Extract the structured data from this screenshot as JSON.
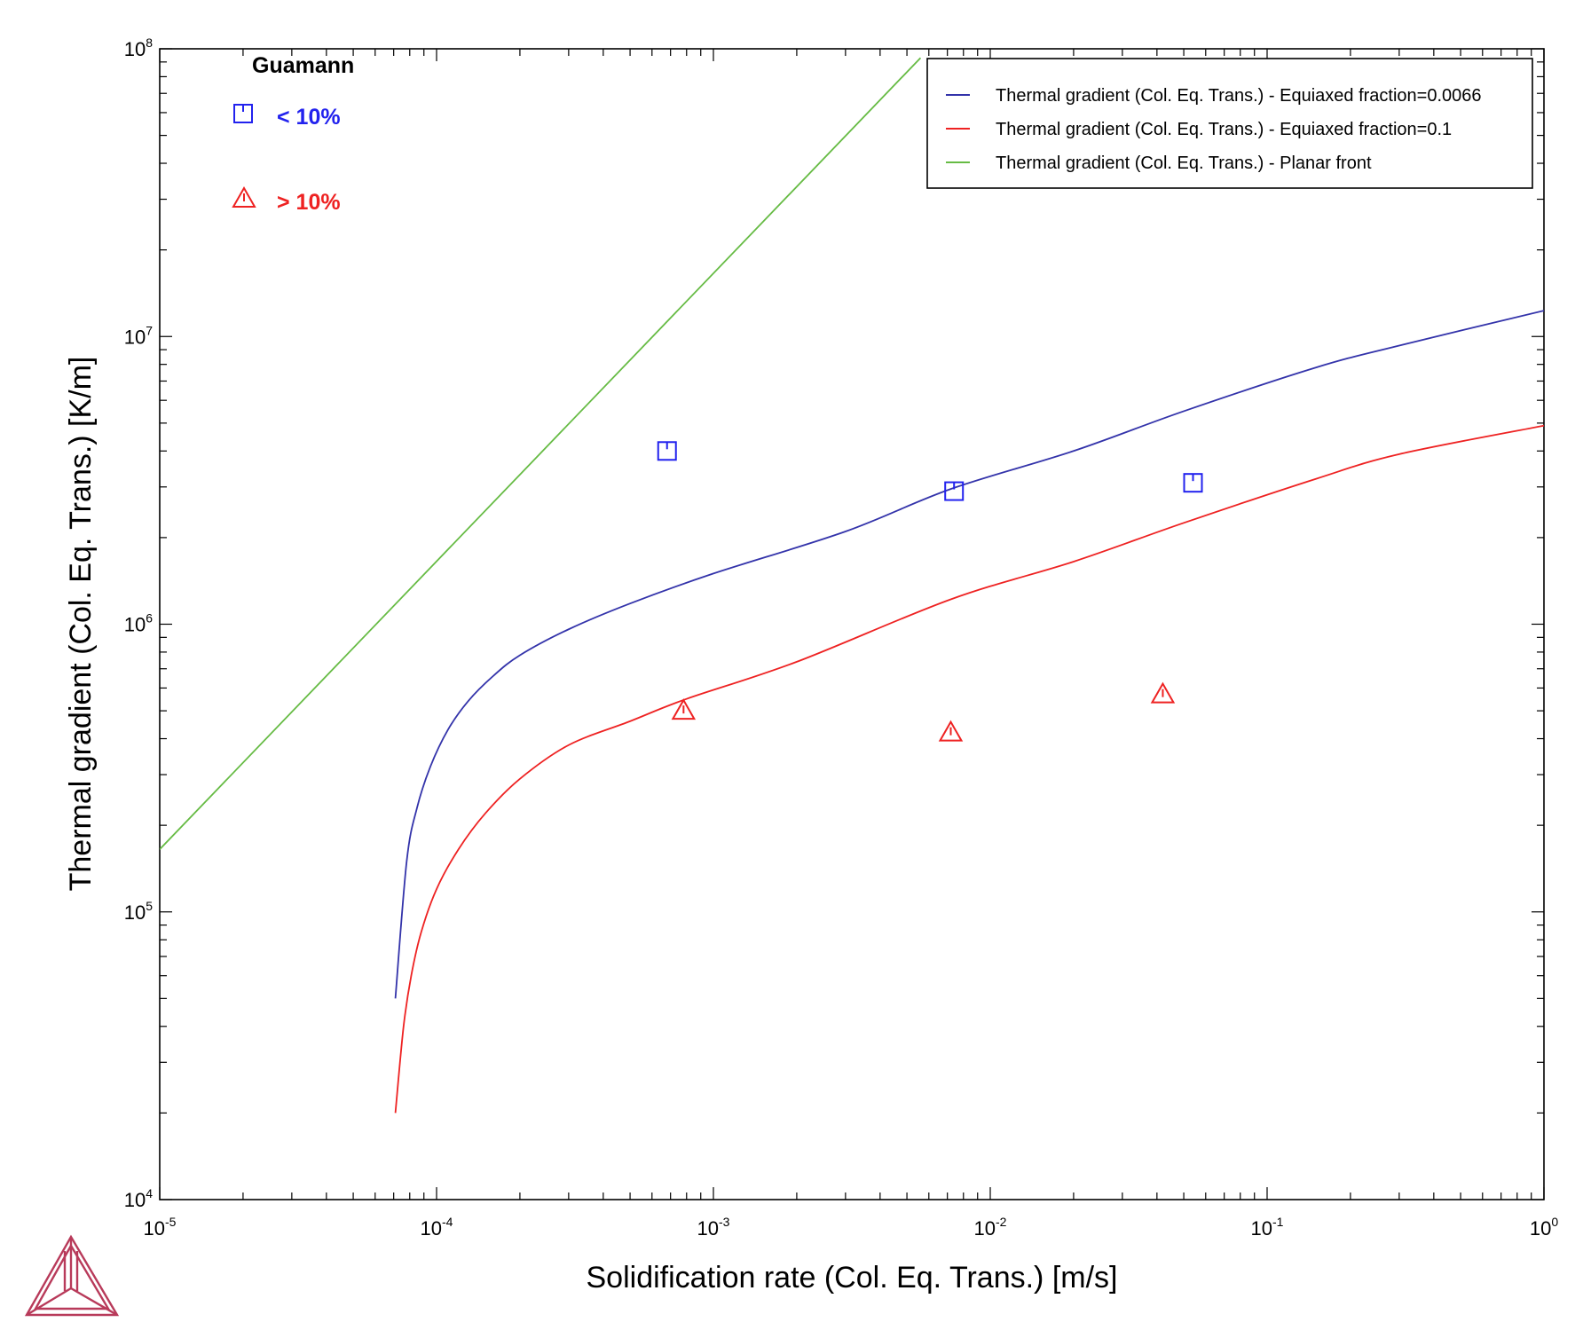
{
  "chart_data": {
    "type": "line",
    "xlabel": "Solidification rate (Col. Eq. Trans.) [m/s]",
    "ylabel": "Thermal gradient (Col. Eq. Trans.) [K/m]",
    "xscale": "log",
    "yscale": "log",
    "xlim": [
      1e-05,
      1
    ],
    "ylim": [
      10000.0,
      100000000.0
    ],
    "x_ticks": [
      {
        "base": "10",
        "exp": "-5",
        "value": 1e-05
      },
      {
        "base": "10",
        "exp": "-4",
        "value": 0.0001
      },
      {
        "base": "10",
        "exp": "-3",
        "value": 0.001
      },
      {
        "base": "10",
        "exp": "-2",
        "value": 0.01
      },
      {
        "base": "10",
        "exp": "-1",
        "value": 0.1
      },
      {
        "base": "10",
        "exp": "0",
        "value": 1
      }
    ],
    "y_ticks": [
      {
        "base": "10",
        "exp": "4",
        "value": 10000.0
      },
      {
        "base": "10",
        "exp": "5",
        "value": 100000.0
      },
      {
        "base": "10",
        "exp": "6",
        "value": 1000000.0
      },
      {
        "base": "10",
        "exp": "7",
        "value": 10000000.0
      },
      {
        "base": "10",
        "exp": "8",
        "value": 100000000.0
      }
    ],
    "legend_position": "top-right",
    "series": [
      {
        "name": "Thermal gradient (Col. Eq. Trans.) - Equiaxed fraction=0.0066",
        "color": "#3333aa",
        "points": [
          [
            7.1e-05,
            50000.0
          ],
          [
            7.8e-05,
            150000.0
          ],
          [
            8.5e-05,
            230000.0
          ],
          [
            9.5e-05,
            320000.0
          ],
          [
            0.00011,
            430000.0
          ],
          [
            0.00013,
            540000.0
          ],
          [
            0.00016,
            660000.0
          ],
          [
            0.0002,
            780000.0
          ],
          [
            0.0003,
            960000.0
          ],
          [
            0.0005,
            1180000.0
          ],
          [
            0.001,
            1500000.0
          ],
          [
            0.003,
            2100000.0
          ],
          [
            0.0072,
            2950000.0
          ],
          [
            0.02,
            4000000.0
          ],
          [
            0.05,
            5500000.0
          ],
          [
            0.15,
            7800000.0
          ],
          [
            0.3,
            9300000.0
          ],
          [
            1.0,
            12300000.0
          ]
        ]
      },
      {
        "name": "Thermal gradient (Col. Eq. Trans.) - Equiaxed fraction=0.1",
        "color": "#ee2222",
        "points": [
          [
            7.1e-05,
            20000.0
          ],
          [
            7.6e-05,
            40000.0
          ],
          [
            8.1e-05,
            60000.0
          ],
          [
            8.8e-05,
            85000.0
          ],
          [
            0.0001,
            120000.0
          ],
          [
            0.00012,
            165000.0
          ],
          [
            0.00015,
            220000.0
          ],
          [
            0.0002,
            290000.0
          ],
          [
            0.0003,
            380000.0
          ],
          [
            0.0005,
            460000.0
          ],
          [
            0.0008,
            550000.0
          ],
          [
            0.002,
            740000.0
          ],
          [
            0.0072,
            1220000.0
          ],
          [
            0.02,
            1650000.0
          ],
          [
            0.05,
            2250000.0
          ],
          [
            0.15,
            3200000.0
          ],
          [
            0.3,
            3900000.0
          ],
          [
            1.0,
            4900000.0
          ]
        ]
      },
      {
        "name": "Thermal gradient (Col. Eq. Trans.) - Planar front",
        "color": "#66bb44",
        "points": [
          [
            1e-05,
            165000.0
          ],
          [
            0.0056,
            93000000.0
          ]
        ]
      }
    ],
    "annotations": {
      "title": "Guamann",
      "groups": [
        {
          "label": "< 10%",
          "marker": "square",
          "color": "#2222ee",
          "points": [
            [
              0.00068,
              4000000.0
            ],
            [
              0.0074,
              2900000.0
            ],
            [
              0.054,
              3100000.0
            ]
          ]
        },
        {
          "label": "> 10%",
          "marker": "triangle",
          "color": "#ee2222",
          "points": [
            [
              0.00078,
              500000.0
            ],
            [
              0.0072,
              420000.0
            ],
            [
              0.042,
              570000.0
            ]
          ]
        }
      ]
    }
  }
}
